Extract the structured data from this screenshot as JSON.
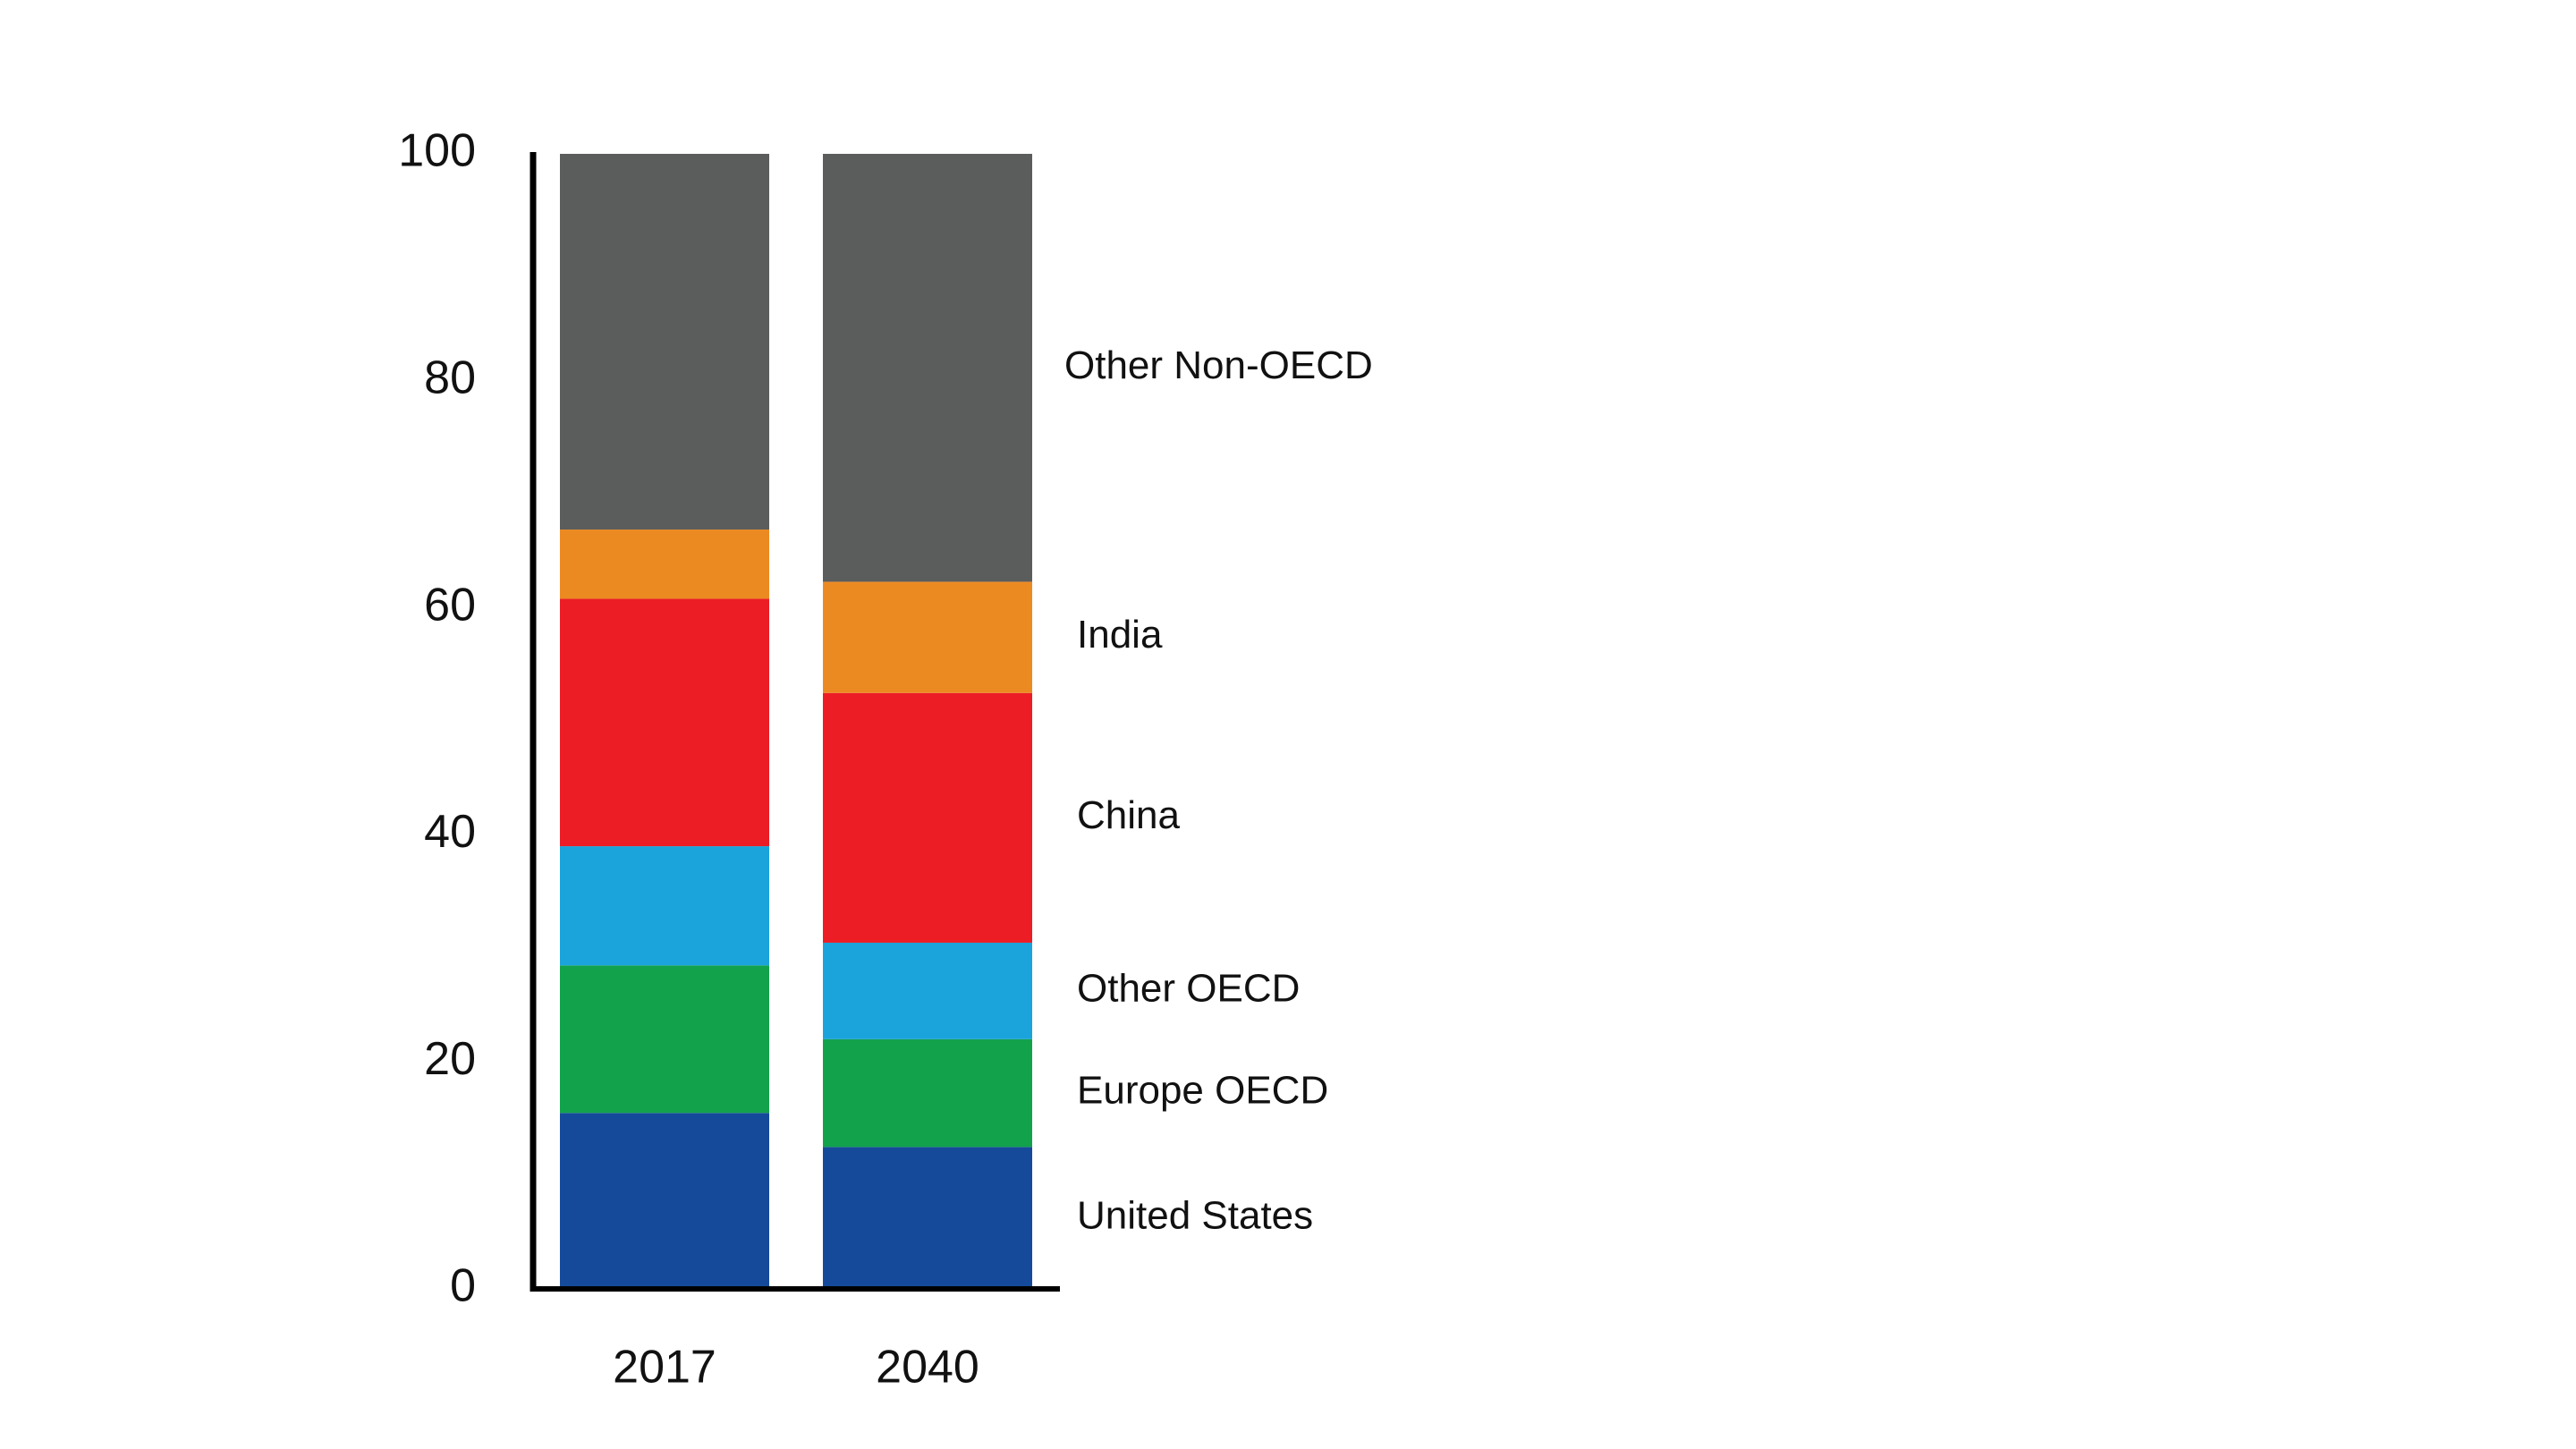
{
  "chart_data": {
    "type": "bar",
    "stacked": true,
    "title": "",
    "xlabel": "",
    "ylabel": "",
    "categories": [
      "2017",
      "2040"
    ],
    "ylim": [
      0,
      100
    ],
    "yticks": [
      0,
      20,
      40,
      60,
      80,
      100
    ],
    "grid": false,
    "legend": "labels at right of stacked bars",
    "series": [
      {
        "name": "United States",
        "color": "#154a9b",
        "values": [
          15.5,
          12.5
        ]
      },
      {
        "name": "Europe OECD",
        "color": "#12a24c",
        "values": [
          13.0,
          9.5
        ]
      },
      {
        "name": "Other OECD",
        "color": "#1ba3dc",
        "values": [
          10.5,
          8.5
        ]
      },
      {
        "name": "China",
        "color": "#ec1d25",
        "values": [
          21.8,
          22.0
        ]
      },
      {
        "name": "India",
        "color": "#ec8a22",
        "values": [
          6.1,
          9.8
        ]
      },
      {
        "name": "Other Non-OECD",
        "color": "#5b5d5c",
        "values": [
          33.1,
          37.7
        ]
      }
    ]
  }
}
